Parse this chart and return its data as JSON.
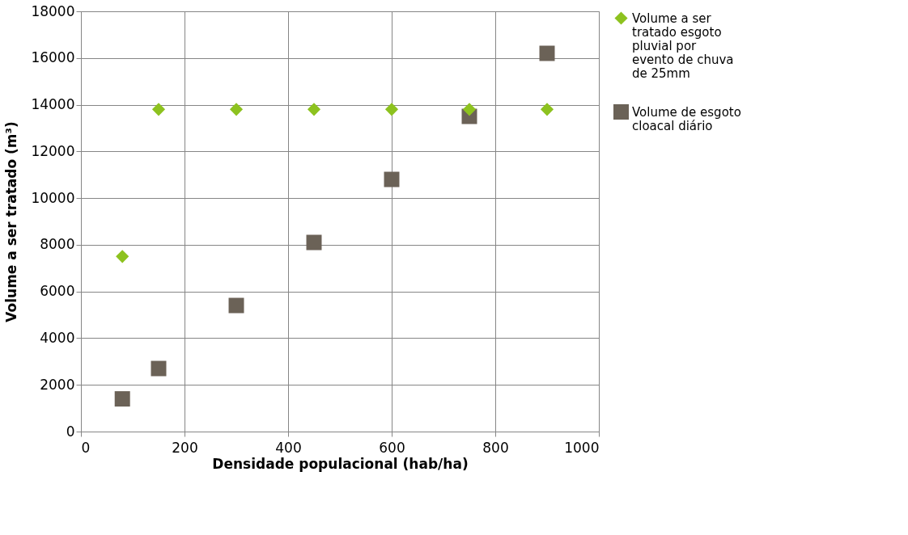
{
  "chart_data": {
    "type": "scatter",
    "xlabel": "Densidade populacional (hab/ha)",
    "ylabel": "Volume a ser tratado (m³)",
    "xlim": [
      0,
      1000
    ],
    "xticks": [
      0,
      200,
      400,
      600,
      800,
      1000
    ],
    "ylim": [
      0,
      18000
    ],
    "yticks": [
      0,
      2000,
      4000,
      6000,
      8000,
      10000,
      12000,
      14000,
      16000,
      18000
    ],
    "grid": true,
    "legend": "right",
    "series": [
      {
        "name": "Volume a ser tratado esgoto pluvial por evento de chuva de 25mm",
        "color": "#8dc21f",
        "marker": "diamond",
        "x": [
          80,
          150,
          300,
          450,
          600,
          750,
          900
        ],
        "values": [
          7500,
          13800,
          13800,
          13800,
          13800,
          13800,
          13800
        ]
      },
      {
        "name": "Volume de esgoto cloacal diário",
        "color": "#6b6257",
        "marker": "square",
        "x": [
          80,
          150,
          300,
          450,
          600,
          750,
          900
        ],
        "values": [
          1400,
          2700,
          5400,
          8100,
          10800,
          13500,
          16200
        ]
      }
    ]
  }
}
